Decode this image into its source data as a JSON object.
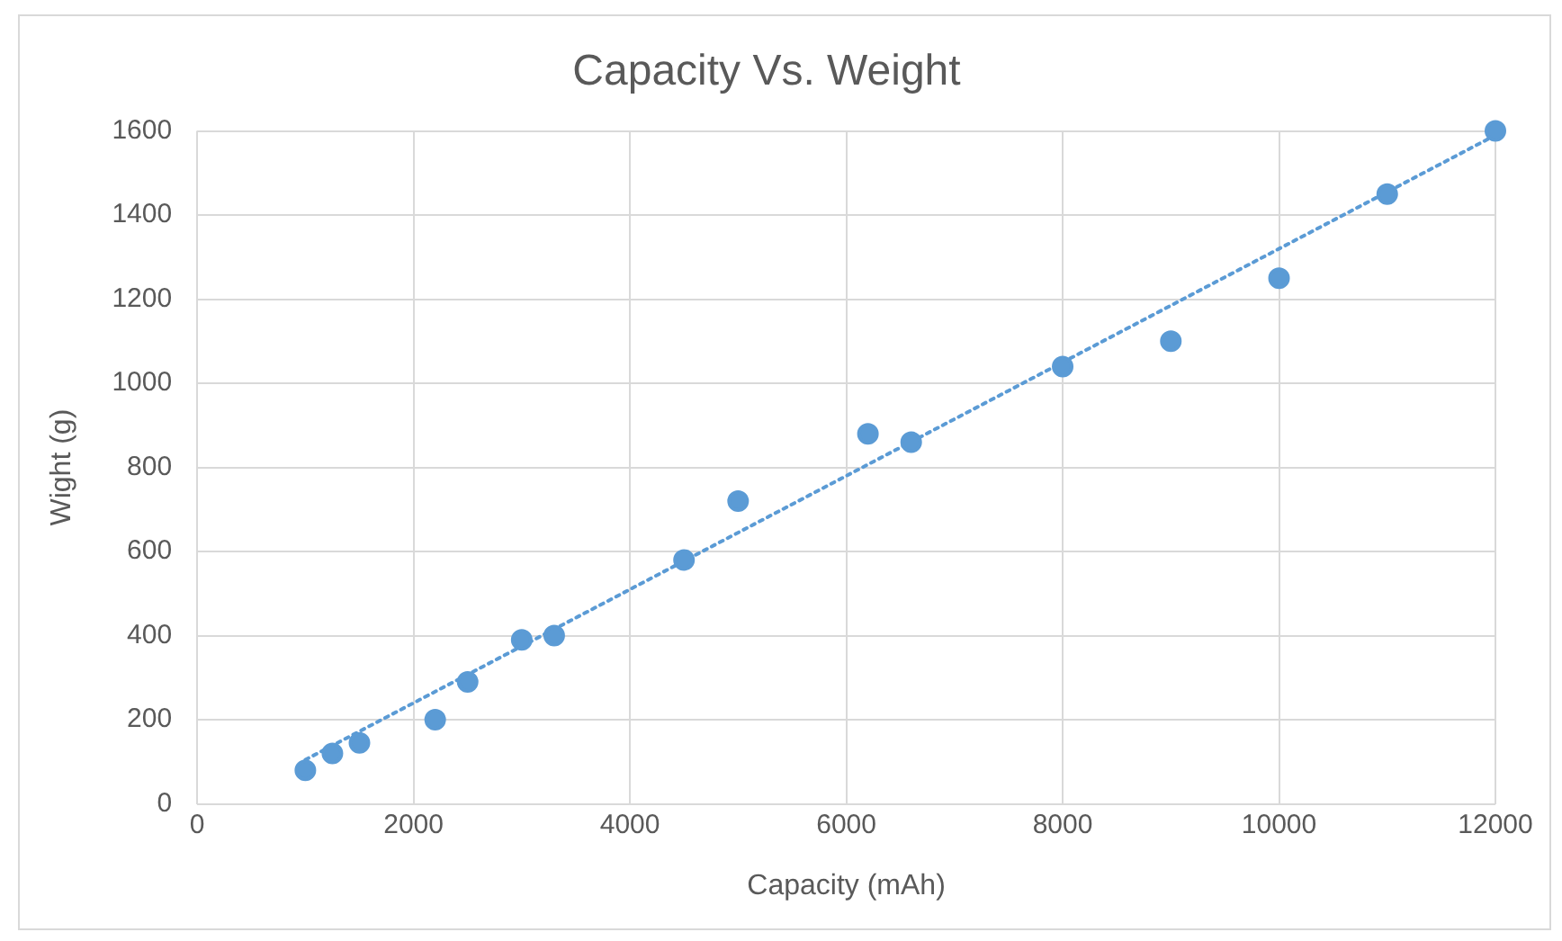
{
  "chart_data": {
    "type": "scatter",
    "title": "Capacity Vs. Weight",
    "xlabel": "Capacity (mAh)",
    "ylabel": "Wight (g)",
    "xlim": [
      0,
      12000
    ],
    "xticks": [
      0,
      2000,
      4000,
      6000,
      8000,
      10000,
      12000
    ],
    "ylim": [
      0,
      1600
    ],
    "yticks": [
      0,
      200,
      400,
      600,
      800,
      1000,
      1200,
      1400,
      1600
    ],
    "grid": true,
    "legend": false,
    "marker": "circle",
    "series": [
      {
        "type": "scatter",
        "color": "#5b9bd5",
        "x": [
          1000,
          1250,
          1500,
          2200,
          2500,
          3000,
          3300,
          4500,
          5000,
          6200,
          6600,
          8000,
          9000,
          10000,
          11000,
          12000
        ],
        "values": [
          80,
          120,
          145,
          200,
          290,
          390,
          400,
          580,
          720,
          880,
          860,
          1040,
          1100,
          1250,
          1450,
          1600
        ]
      },
      {
        "type": "line",
        "color": "#5b9bd5",
        "marker": "none",
        "line_style": "dotted",
        "x": [
          1000,
          12000
        ],
        "values": [
          105,
          1590
        ]
      }
    ]
  }
}
